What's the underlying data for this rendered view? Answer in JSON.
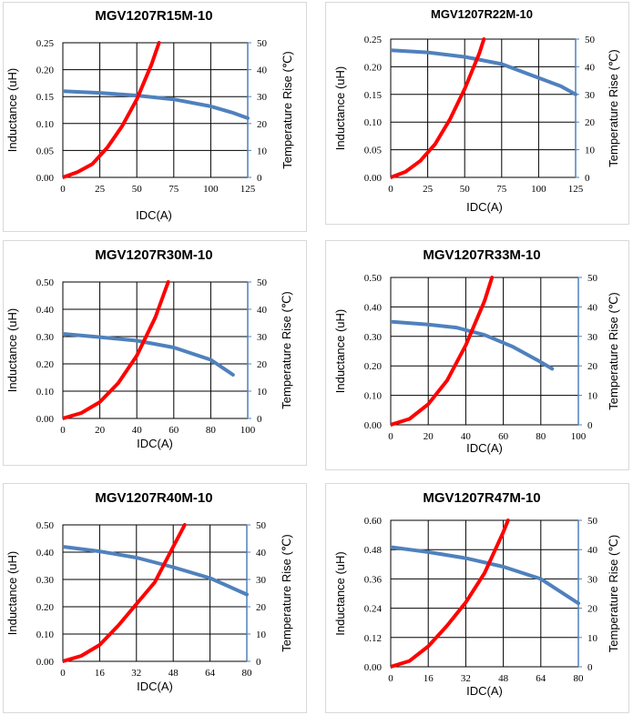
{
  "chart_data": [
    {
      "type": "line",
      "title": "MGV1207R15M-10",
      "xlabel": "IDC(A)",
      "ylabel": "Inductance (uH)",
      "y2label": "Temperature Rise (℃)",
      "xlim": [
        0,
        125
      ],
      "ylim": [
        0,
        0.25
      ],
      "y2lim": [
        0,
        50
      ],
      "xticks": [
        "0",
        "25",
        "50",
        "75",
        "100",
        "125"
      ],
      "yticks": [
        "0.00",
        "0.05",
        "0.10",
        "0.15",
        "0.20",
        "0.25"
      ],
      "y2ticks": [
        "0",
        "10",
        "20",
        "30",
        "40",
        "50"
      ],
      "series": [
        {
          "name": "Inductance",
          "axis": "left",
          "color": "#4f81bd",
          "x": [
            0,
            25,
            50,
            75,
            100,
            115,
            125
          ],
          "y": [
            0.16,
            0.157,
            0.152,
            0.145,
            0.132,
            0.12,
            0.11
          ]
        },
        {
          "name": "Temperature Rise",
          "axis": "right",
          "color": "#ff0000",
          "x": [
            0,
            10,
            20,
            30,
            40,
            50,
            60,
            65
          ],
          "y": [
            0,
            2,
            5,
            11,
            19,
            29,
            42,
            50
          ]
        }
      ]
    },
    {
      "type": "line",
      "title": "MGV1207R22M-10",
      "xlabel": "IDC(A)",
      "ylabel": "Inductance (uH)",
      "y2label": "Temperature Rise (℃)",
      "xlim": [
        0,
        125
      ],
      "ylim": [
        0,
        0.25
      ],
      "y2lim": [
        0,
        50
      ],
      "xticks": [
        "0",
        "25",
        "50",
        "75",
        "100",
        "125"
      ],
      "yticks": [
        "0.00",
        "0.05",
        "0.10",
        "0.15",
        "0.20",
        "0.25"
      ],
      "y2ticks": [
        "0",
        "10",
        "20",
        "30",
        "40",
        "50"
      ],
      "series": [
        {
          "name": "Inductance",
          "axis": "left",
          "color": "#4f81bd",
          "x": [
            0,
            25,
            50,
            75,
            100,
            115,
            125
          ],
          "y": [
            0.23,
            0.226,
            0.218,
            0.205,
            0.18,
            0.165,
            0.15
          ]
        },
        {
          "name": "Temperature Rise",
          "axis": "right",
          "color": "#ff0000",
          "x": [
            0,
            10,
            20,
            30,
            40,
            50,
            60,
            63
          ],
          "y": [
            0,
            2,
            6,
            12,
            21,
            32,
            45,
            50
          ]
        }
      ]
    },
    {
      "type": "line",
      "title": "MGV1207R30M-10",
      "xlabel": "IDC(A)",
      "ylabel": "Inductance (uH)",
      "y2label": "Temperature Rise (℃)",
      "xlim": [
        0,
        100
      ],
      "ylim": [
        0,
        0.5
      ],
      "y2lim": [
        0,
        50
      ],
      "xticks": [
        "0",
        "20",
        "40",
        "60",
        "80",
        "100"
      ],
      "yticks": [
        "0.00",
        "0.10",
        "0.20",
        "0.30",
        "0.40",
        "0.50"
      ],
      "y2ticks": [
        "0",
        "10",
        "20",
        "30",
        "40",
        "50"
      ],
      "series": [
        {
          "name": "Inductance",
          "axis": "left",
          "color": "#4f81bd",
          "x": [
            0,
            20,
            40,
            60,
            80,
            92
          ],
          "y": [
            0.31,
            0.298,
            0.285,
            0.26,
            0.215,
            0.16
          ]
        },
        {
          "name": "Temperature Rise",
          "axis": "right",
          "color": "#ff0000",
          "x": [
            0,
            10,
            20,
            30,
            40,
            50,
            57
          ],
          "y": [
            0,
            2,
            6,
            13,
            23,
            37,
            50
          ]
        }
      ]
    },
    {
      "type": "line",
      "title": "MGV1207R33M-10",
      "xlabel": "IDC(A)",
      "ylabel": "Inductance (uH)",
      "y2label": "Temperature Rise (℃)",
      "xlim": [
        0,
        100
      ],
      "ylim": [
        0,
        0.5
      ],
      "y2lim": [
        0,
        50
      ],
      "xticks": [
        "0",
        "20",
        "40",
        "60",
        "80",
        "100"
      ],
      "yticks": [
        "0.00",
        "0.10",
        "0.20",
        "0.30",
        "0.40",
        "0.50"
      ],
      "y2ticks": [
        "0",
        "10",
        "20",
        "30",
        "40",
        "50"
      ],
      "series": [
        {
          "name": "Inductance",
          "axis": "left",
          "color": "#4f81bd",
          "x": [
            0,
            20,
            35,
            50,
            65,
            78,
            86
          ],
          "y": [
            0.35,
            0.34,
            0.33,
            0.305,
            0.265,
            0.22,
            0.19
          ]
        },
        {
          "name": "Temperature Rise",
          "axis": "right",
          "color": "#ff0000",
          "x": [
            0,
            10,
            20,
            30,
            40,
            50,
            54
          ],
          "y": [
            0,
            2,
            7,
            15,
            27,
            42,
            50
          ]
        }
      ]
    },
    {
      "type": "line",
      "title": "MGV1207R40M-10",
      "xlabel": "IDC(A)",
      "ylabel": "Inductance (uH)",
      "y2label": "Temperature Rise (℃)",
      "xlim": [
        0,
        80
      ],
      "ylim": [
        0,
        0.5
      ],
      "y2lim": [
        0,
        50
      ],
      "xticks": [
        "0",
        "16",
        "32",
        "48",
        "64",
        "80"
      ],
      "yticks": [
        "0.00",
        "0.10",
        "0.20",
        "0.30",
        "0.40",
        "0.50"
      ],
      "y2ticks": [
        "0",
        "10",
        "20",
        "30",
        "40",
        "50"
      ],
      "series": [
        {
          "name": "Inductance",
          "axis": "left",
          "color": "#4f81bd",
          "x": [
            0,
            16,
            32,
            48,
            64,
            80
          ],
          "y": [
            0.42,
            0.403,
            0.38,
            0.345,
            0.305,
            0.245
          ]
        },
        {
          "name": "Temperature Rise",
          "axis": "right",
          "color": "#ff0000",
          "x": [
            0,
            8,
            16,
            24,
            32,
            40,
            48,
            53
          ],
          "y": [
            0,
            2,
            6,
            13,
            21,
            29,
            42,
            50
          ]
        }
      ]
    },
    {
      "type": "line",
      "title": "MGV1207R47M-10",
      "xlabel": "IDC(A)",
      "ylabel": "Inductance (uH)",
      "y2label": "Temperature Rise (℃)",
      "xlim": [
        0,
        80
      ],
      "ylim": [
        0,
        0.6
      ],
      "y2lim": [
        0,
        50
      ],
      "xticks": [
        "0",
        "16",
        "32",
        "48",
        "64",
        "80"
      ],
      "yticks": [
        "0.00",
        "0.12",
        "0.24",
        "0.36",
        "0.48",
        "0.60"
      ],
      "y2ticks": [
        "0",
        "10",
        "20",
        "30",
        "40",
        "50"
      ],
      "series": [
        {
          "name": "Inductance",
          "axis": "left",
          "color": "#4f81bd",
          "x": [
            0,
            16,
            32,
            48,
            64,
            80
          ],
          "y": [
            0.49,
            0.47,
            0.445,
            0.41,
            0.36,
            0.26
          ]
        },
        {
          "name": "Temperature Rise",
          "axis": "right",
          "color": "#ff0000",
          "x": [
            0,
            8,
            16,
            24,
            32,
            40,
            48,
            50
          ],
          "y": [
            0,
            2,
            7,
            14,
            22,
            32,
            46,
            50
          ]
        }
      ]
    }
  ]
}
